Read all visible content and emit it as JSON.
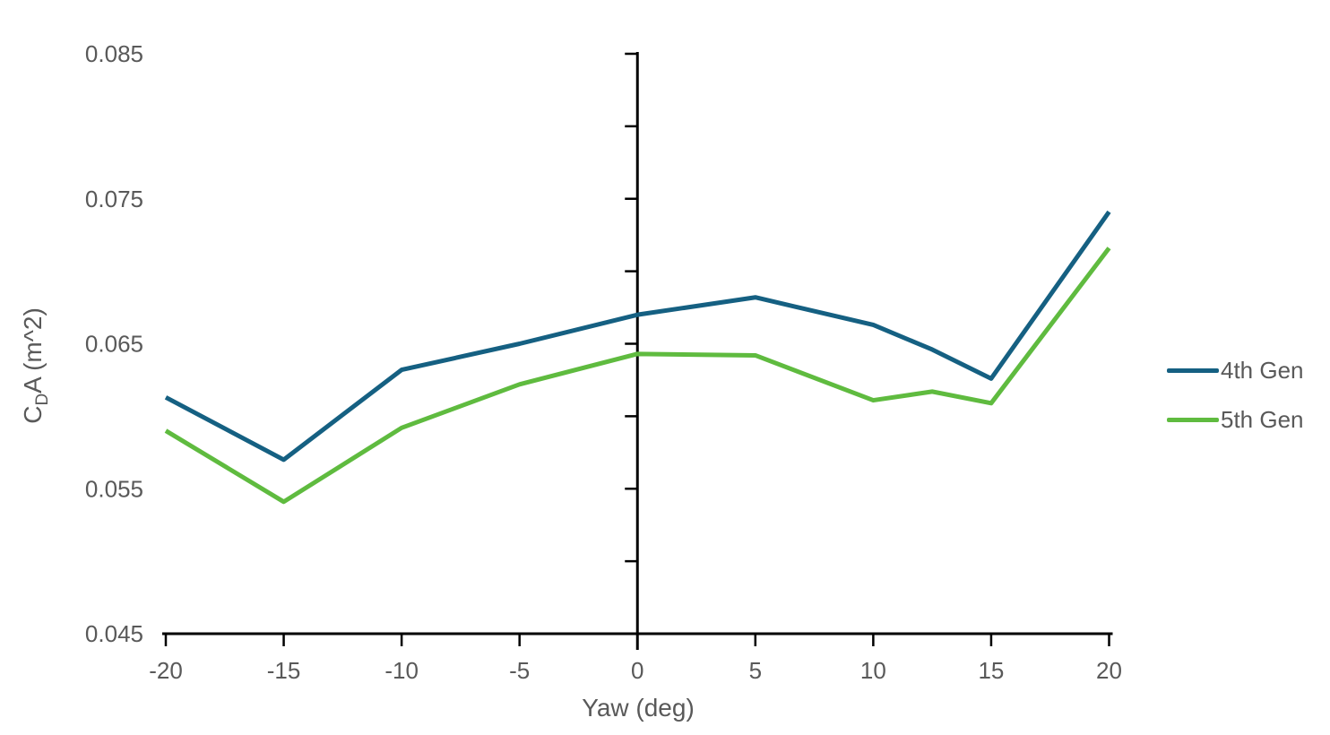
{
  "page": {
    "background": "#ffffff"
  },
  "chart_data": {
    "type": "line",
    "title": "",
    "xlabel": "Yaw (deg)",
    "ylabel": {
      "pre": "C",
      "sub": "D",
      "post": "A (m^2)"
    },
    "xlim": [
      -20,
      20
    ],
    "ylim": [
      0.045,
      0.085
    ],
    "x_ticks": [
      -20,
      -15,
      -10,
      -5,
      0,
      5,
      10,
      15,
      20
    ],
    "y_label_ticks": [
      0.045,
      0.055,
      0.065,
      0.075,
      0.085
    ],
    "y_minor_tick_step": 0.005,
    "y_tick_decimals": 3,
    "grid": false,
    "legend_position": "right",
    "axis_color": "#000000",
    "text_color": "#595959",
    "x": [
      -20,
      -15,
      -10,
      -5,
      0,
      5,
      10,
      12.5,
      15,
      20
    ],
    "series": [
      {
        "name": "4th Gen",
        "color": "#156082",
        "values": [
          0.0613,
          0.057,
          0.0632,
          0.065,
          0.067,
          0.0682,
          0.0663,
          0.0646,
          0.0626,
          0.0741
        ]
      },
      {
        "name": "5th Gen",
        "color": "#5FBB3F",
        "values": [
          0.059,
          0.0541,
          0.0592,
          0.0622,
          0.0643,
          0.0642,
          0.0611,
          0.0617,
          0.0609,
          0.0716
        ]
      }
    ]
  }
}
